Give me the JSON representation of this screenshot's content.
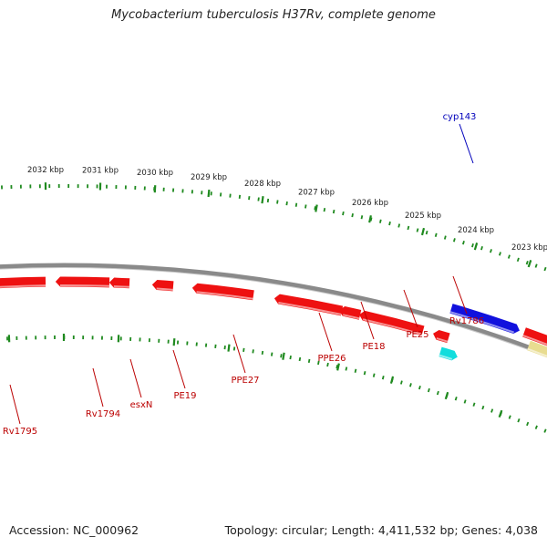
{
  "title": "Mycobacterium tuberculosis H37Rv, complete genome",
  "footer": {
    "accession": "Accession: NC_000962",
    "topology": "Topology: circular; Length: 4,411,532 bp; Genes: 4,038"
  },
  "colors": {
    "backbone": "#8a8a8a",
    "ticks": "#1f8a1f",
    "gene_red": "#ee1111",
    "gene_blue": "#1111dd",
    "gene_cyan": "#11dddd",
    "gene_tan": "#e8dc90",
    "label_red": "#bb0000",
    "label_blue": "#0000bb"
  },
  "kbp_labels": [
    "2032 kbp",
    "2031 kbp",
    "2030 kbp",
    "2029 kbp",
    "2028 kbp",
    "2027 kbp",
    "2026 kbp",
    "2025 kbp",
    "2024 kbp",
    "2023 kbp"
  ],
  "gene_labels": [
    {
      "name": "cyp143",
      "color": "blue"
    },
    {
      "name": "Rv1786",
      "color": "red"
    },
    {
      "name": "PE25",
      "color": "red"
    },
    {
      "name": "PE18",
      "color": "red"
    },
    {
      "name": "PPE26",
      "color": "red"
    },
    {
      "name": "PPE27",
      "color": "red"
    },
    {
      "name": "PE19",
      "color": "red"
    },
    {
      "name": "esxN",
      "color": "red"
    },
    {
      "name": "Rv1794",
      "color": "red"
    },
    {
      "name": "Rv1795",
      "color": "red"
    }
  ]
}
